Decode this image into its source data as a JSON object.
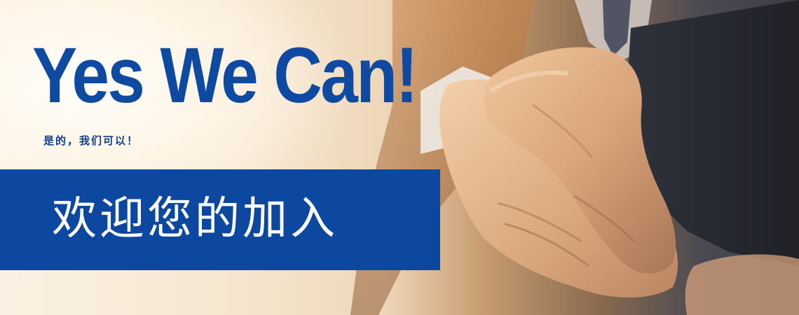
{
  "banner": {
    "headline": "Yes We Can!",
    "subline": "是的，我们可以！",
    "welcome": "欢迎您的加入"
  },
  "colors": {
    "brand_blue": "#0c47a0",
    "headline_blue": "#0f4aa2",
    "welcome_text": "#ffffff"
  },
  "image": {
    "subject": "handshake-photo"
  }
}
